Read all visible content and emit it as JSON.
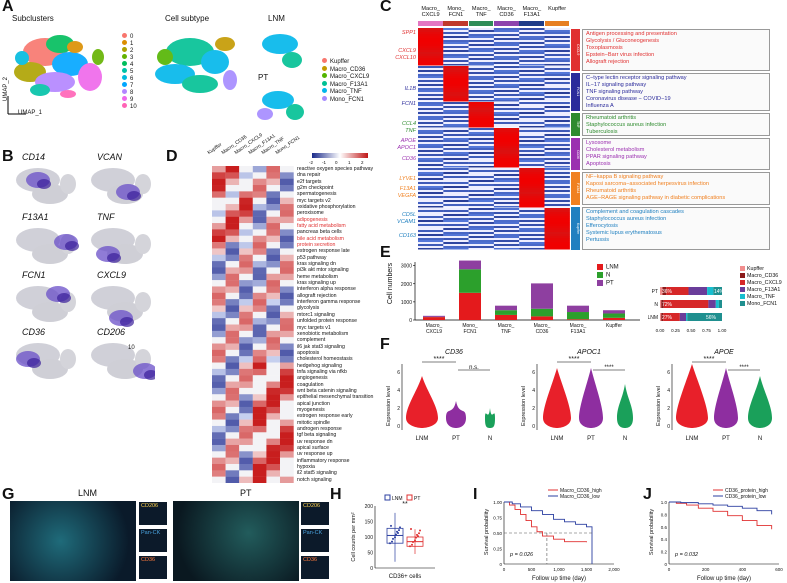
{
  "panels": {
    "A": "A",
    "B": "B",
    "C": "C",
    "D": "D",
    "E": "E",
    "F": "F",
    "G": "G",
    "H": "H",
    "I": "I",
    "J": "J"
  },
  "panelA": {
    "subclusters_title": "Subclusters",
    "cell_subtype_title": "Cell subtype",
    "lnm_label": "LNM",
    "pt_label": "PT",
    "umap_x": "UMAP_1",
    "umap_y": "UMAP_2",
    "cluster_legend": [
      {
        "label": "0",
        "color": "#f8766d"
      },
      {
        "label": "1",
        "color": "#db8e00"
      },
      {
        "label": "2",
        "color": "#aea200"
      },
      {
        "label": "3",
        "color": "#64b200"
      },
      {
        "label": "4",
        "color": "#00bd5c"
      },
      {
        "label": "5",
        "color": "#00c1a7"
      },
      {
        "label": "6",
        "color": "#00bade"
      },
      {
        "label": "7",
        "color": "#00a6ff"
      },
      {
        "label": "8",
        "color": "#b385ff"
      },
      {
        "label": "9",
        "color": "#ef67eb"
      },
      {
        "label": "10",
        "color": "#ff63b6"
      }
    ],
    "subtype_legend": [
      {
        "label": "Kupffer",
        "color": "#f8766d"
      },
      {
        "label": "Macro_CD36",
        "color": "#c49a00"
      },
      {
        "label": "Macro_CXCL9",
        "color": "#53b400"
      },
      {
        "label": "Macro_F13A1",
        "color": "#00c094"
      },
      {
        "label": "Macro_TNF",
        "color": "#00b6eb"
      },
      {
        "label": "Mono_FCN1",
        "color": "#a58aff"
      }
    ]
  },
  "panelB": {
    "genes": [
      "CD14",
      "VCAN",
      "F13A1",
      "TNF",
      "FCN1",
      "CXCL9",
      "CD36",
      "CD206"
    ],
    "cluster_tag": "10"
  },
  "panelC": {
    "columns": [
      {
        "label": "Macro_ CXCL9",
        "color": "#e377c2"
      },
      {
        "label": "Mono_ FCN1",
        "color": "#c0392b"
      },
      {
        "label": "Macro_ TNF",
        "color": "#2e8b57"
      },
      {
        "label": "Macro_ CD36",
        "color": "#8e44ad"
      },
      {
        "label": "Macro_ F13A1",
        "color": "#1f3c88"
      },
      {
        "label": "Kupffer",
        "color": "#e67e22"
      }
    ],
    "gene_labels": [
      {
        "text": "SPP1",
        "color": "#e03030"
      },
      {
        "text": "CXCL9",
        "color": "#e03030"
      },
      {
        "text": "CXCL10",
        "color": "#e03030"
      },
      {
        "text": "IL1B",
        "color": "#2b2b9b"
      },
      {
        "text": "FCN1",
        "color": "#2b2b9b"
      },
      {
        "text": "CCL4",
        "color": "#2e8b2e"
      },
      {
        "text": "TNF",
        "color": "#2e8b2e"
      },
      {
        "text": "APOE",
        "color": "#9b30b0"
      },
      {
        "text": "APOC1",
        "color": "#9b30b0"
      },
      {
        "text": "CD36",
        "color": "#9b30b0"
      },
      {
        "text": "LYVE1",
        "color": "#f08020"
      },
      {
        "text": "F13A1",
        "color": "#f08020"
      },
      {
        "text": "VEGFA",
        "color": "#f08020"
      },
      {
        "text": "CD5L",
        "color": "#2080c0"
      },
      {
        "text": "VCAM1",
        "color": "#2080c0"
      },
      {
        "text": "CD163",
        "color": "#2080c0"
      }
    ],
    "pathway_groups": [
      {
        "color": "#e03030",
        "tag": "CXCL9",
        "items": [
          "Antigen processing and presentation",
          "Glycolysis / Gluconeogenesis",
          "Toxoplasmosis",
          "Epstein−Barr virus infection",
          "Allograft rejection"
        ]
      },
      {
        "color": "#2b2b9b",
        "tag": "FCN1",
        "items": [
          "C−type lectin receptor signaling pathway",
          "IL−17 signaling pathway",
          "TNF signaling pathway",
          "Coronavirus disease − COVID−19",
          "Influenza A"
        ]
      },
      {
        "color": "#2e8b2e",
        "tag": "TNF",
        "items": [
          "Rheumatoid arthritis",
          "Staphylococcus aureus infection",
          "Tuberculosis"
        ]
      },
      {
        "color": "#9b30b0",
        "tag": "CD36",
        "items": [
          "Lysosome",
          "Cholesterol metabolism",
          "PPAR signaling pathway",
          "Apoptosis"
        ]
      },
      {
        "color": "#f08020",
        "tag": "F13A1",
        "items": [
          "NF−kappa B signaling pathway",
          "Kaposi sarcoma−associated herpesvirus infection",
          "Rheumatoid arthritis",
          "AGE−RAGE signaling pathway in diabetic complications"
        ]
      },
      {
        "color": "#2080c0",
        "tag": "Kupffer",
        "items": [
          "Complement and coagulation cascades",
          "Staphylococcus aureus infection",
          "Efferocytosis",
          "Systemic lupus erythematosus",
          "Pertussis"
        ]
      }
    ]
  },
  "panelD": {
    "columns": [
      "Kupffer",
      "Macro_CD36",
      "Macro_CXCL9",
      "Macro_F13A1",
      "Macro_TNF",
      "Mono_FCN1"
    ],
    "legend_ticks": [
      "-2",
      "-1",
      "0",
      "1",
      "2"
    ],
    "rows": [
      {
        "text": "reactive oxygen species pathway",
        "red": false
      },
      {
        "text": "dna repair",
        "red": false
      },
      {
        "text": "e2f targets",
        "red": false
      },
      {
        "text": "g2m checkpoint",
        "red": false
      },
      {
        "text": "spermatogenesis",
        "red": false
      },
      {
        "text": "myc targets v2",
        "red": false
      },
      {
        "text": "oxidative phosphorylation",
        "red": false
      },
      {
        "text": "peroxisome",
        "red": false
      },
      {
        "text": "adipogenesis",
        "red": true
      },
      {
        "text": "fatty acid metabolism",
        "red": true
      },
      {
        "text": "pancreas beta cells",
        "red": false
      },
      {
        "text": "bile acid metabolism",
        "red": true
      },
      {
        "text": "protein secretion",
        "red": true
      },
      {
        "text": "estrogen response late",
        "red": false
      },
      {
        "text": "p53 pathway",
        "red": false
      },
      {
        "text": "kras signaling dn",
        "red": false
      },
      {
        "text": "pi3k akt mtor signaling",
        "red": false
      },
      {
        "text": "heme metabolism",
        "red": false
      },
      {
        "text": "kras signaling up",
        "red": false
      },
      {
        "text": "interferon alpha response",
        "red": false
      },
      {
        "text": "allograft rejection",
        "red": false
      },
      {
        "text": "interferon gamma response",
        "red": false
      },
      {
        "text": "glycolysis",
        "red": false
      },
      {
        "text": "mtorc1 signaling",
        "red": false
      },
      {
        "text": "unfolded protein response",
        "red": false
      },
      {
        "text": "myc targets v1",
        "red": false
      },
      {
        "text": "xenobiotic metabolism",
        "red": false
      },
      {
        "text": "complement",
        "red": false
      },
      {
        "text": "il6 jak stat3 signaling",
        "red": false
      },
      {
        "text": "apoptosis",
        "red": false
      },
      {
        "text": "cholesterol homeostasis",
        "red": false
      },
      {
        "text": "hedgehog signaling",
        "red": false
      },
      {
        "text": "tnfa signaling via nfkb",
        "red": false
      },
      {
        "text": "angiogenesis",
        "red": false
      },
      {
        "text": "coagulation",
        "red": false
      },
      {
        "text": "wnt beta catenin signaling",
        "red": false
      },
      {
        "text": "epithelial mesenchymal transition",
        "red": false
      },
      {
        "text": "apical junction",
        "red": false
      },
      {
        "text": "myogenesis",
        "red": false
      },
      {
        "text": "estrogen response early",
        "red": false
      },
      {
        "text": "mitotic spindle",
        "red": false
      },
      {
        "text": "androgen response",
        "red": false
      },
      {
        "text": "tgf beta signaling",
        "red": false
      },
      {
        "text": "uv response dn",
        "red": false
      },
      {
        "text": "apical surface",
        "red": false
      },
      {
        "text": "uv response up",
        "red": false
      },
      {
        "text": "inflammatory response",
        "red": false
      },
      {
        "text": "hypoxia",
        "red": false
      },
      {
        "text": "il2 stat5 signaling",
        "red": false
      },
      {
        "text": "notch signaling",
        "red": false
      }
    ]
  },
  "panelE": {
    "ylabel": "Cell numbers",
    "yticks": [
      "0",
      "1000",
      "2000",
      "3000"
    ],
    "categories": [
      "Macro_ CXCL9",
      "Mono_ FCN1",
      "Macro_ TNF",
      "Macro_ CD36",
      "Macro_ F13A1",
      "Kupffer"
    ],
    "legend": [
      {
        "label": "LNM",
        "color": "#e41a1c"
      },
      {
        "label": "N",
        "color": "#2ca02c"
      },
      {
        "label": "PT",
        "color": "#8e3fa0"
      }
    ],
    "prop_rows": [
      "PT",
      "N",
      "LNM"
    ],
    "prop_legend": [
      {
        "label": "Kupffer",
        "color": "#f28e8e"
      },
      {
        "label": "Macro_CD36",
        "color": "#8b1a1a"
      },
      {
        "label": "Macro_CXCL9",
        "color": "#d62728"
      },
      {
        "label": "Macro_F13A1",
        "color": "#6a3d9a"
      },
      {
        "label": "Macro_TNF",
        "color": "#17becf"
      },
      {
        "label": "Mono_FCN1",
        "color": "#1f8f8f"
      }
    ],
    "prop_annotations": {
      "pt_left": "36%",
      "pt_right": "14%",
      "n_left": "72%",
      "lnm_left": "27%",
      "lnm_right": "56%"
    },
    "prop_xticks": [
      "0.00",
      "0.25",
      "0.50",
      "0.75",
      "1.00"
    ]
  },
  "panelF": {
    "ylabel": "Expression level",
    "groups": [
      "LNM",
      "PT",
      "N"
    ],
    "plots": [
      {
        "gene": "CD36",
        "sig1": "****",
        "sig2": "n.s."
      },
      {
        "gene": "APOC1",
        "sig1": "****",
        "sig2": "****"
      },
      {
        "gene": "APOE",
        "sig1": "****",
        "sig2": "****"
      }
    ]
  },
  "panelG": {
    "lnm_title": "LNM",
    "pt_title": "PT",
    "markers": [
      {
        "label": "CD206",
        "color": "#ffd24d"
      },
      {
        "label": "Pan-CK",
        "color": "#4aa3df"
      },
      {
        "label": "CD36",
        "color": "#ff7a3d"
      }
    ]
  },
  "panelH": {
    "ylabel": "Cell counts per mm²",
    "xlabel": "CD36+ cells",
    "legend": [
      {
        "label": "LNM",
        "color": "#2b3fa0"
      },
      {
        "label": "PT",
        "color": "#e03030"
      }
    ],
    "yticks": [
      "0",
      "50",
      "100",
      "150",
      "200"
    ],
    "sig": "**"
  },
  "panelI": {
    "ylabel": "Survival probability",
    "xlabel": "Follow up time (day)",
    "legend": [
      {
        "label": "Macro_CD36_high",
        "color": "#e03030"
      },
      {
        "label": "Macro_CD36_low",
        "color": "#2b3fa0"
      }
    ],
    "pvalue": "p = 0.026",
    "xticks": [
      "0",
      "500",
      "1,000",
      "1,500",
      "2,000"
    ],
    "yticks": [
      "0",
      "0.25",
      "0.50",
      "0.75",
      "1.00"
    ]
  },
  "panelJ": {
    "ylabel": "Survival probability",
    "xlabel": "Follow up time (day)",
    "legend": [
      {
        "label": "CD36_protein_high",
        "color": "#e03030"
      },
      {
        "label": "CD36_protein_low",
        "color": "#2b3fa0"
      }
    ],
    "pvalue": "p = 0.032",
    "xticks": [
      "0",
      "200",
      "400",
      "600"
    ],
    "yticks": [
      "0",
      "0.2",
      "0.4",
      "0.6",
      "0.8",
      "1.0"
    ]
  }
}
